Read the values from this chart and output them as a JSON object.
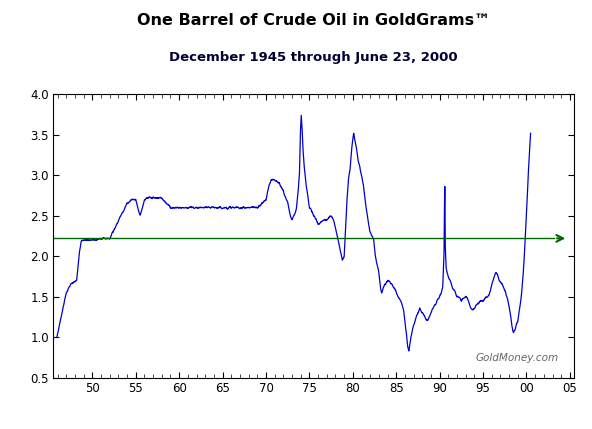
{
  "title": "One Barrel of Crude Oil in GoldGrams",
  "title_tm": "™",
  "subtitle": "December 1945 through June 23, 2000",
  "watermark": "GoldMoney.com",
  "line_color": "#0000CC",
  "arrow_color": "#006600",
  "mean_line_color": "#006600",
  "mean_value": 2.22,
  "ylim": [
    0.5,
    4.0
  ],
  "yticks": [
    0.5,
    1.0,
    1.5,
    2.0,
    2.5,
    3.0,
    3.5,
    4.0
  ],
  "xticks": [
    1950,
    1955,
    1960,
    1965,
    1970,
    1975,
    1980,
    1985,
    1990,
    1995,
    2000,
    2005
  ],
  "xtick_labels": [
    "50",
    "55",
    "60",
    "65",
    "70",
    "75",
    "80",
    "85",
    "90",
    "95",
    "00",
    "05"
  ],
  "xlim": [
    1945.5,
    2005.5
  ],
  "background_color": "#ffffff",
  "key_points": [
    [
      1945.92,
      1.0
    ],
    [
      1946.5,
      1.3
    ],
    [
      1947.0,
      1.55
    ],
    [
      1947.5,
      1.65
    ],
    [
      1948.2,
      1.7
    ],
    [
      1948.5,
      2.05
    ],
    [
      1948.7,
      2.18
    ],
    [
      1949.0,
      2.2
    ],
    [
      1949.5,
      2.2
    ],
    [
      1950.0,
      2.2
    ],
    [
      1950.5,
      2.2
    ],
    [
      1951.0,
      2.22
    ],
    [
      1952.0,
      2.22
    ],
    [
      1953.5,
      2.55
    ],
    [
      1954.0,
      2.65
    ],
    [
      1954.5,
      2.7
    ],
    [
      1955.0,
      2.7
    ],
    [
      1955.5,
      2.5
    ],
    [
      1956.0,
      2.7
    ],
    [
      1956.5,
      2.72
    ],
    [
      1957.0,
      2.72
    ],
    [
      1958.0,
      2.72
    ],
    [
      1959.0,
      2.6
    ],
    [
      1960.0,
      2.6
    ],
    [
      1961.0,
      2.6
    ],
    [
      1962.0,
      2.6
    ],
    [
      1963.0,
      2.6
    ],
    [
      1964.0,
      2.6
    ],
    [
      1965.0,
      2.6
    ],
    [
      1966.0,
      2.6
    ],
    [
      1967.0,
      2.6
    ],
    [
      1968.0,
      2.6
    ],
    [
      1969.0,
      2.6
    ],
    [
      1969.5,
      2.65
    ],
    [
      1970.0,
      2.7
    ],
    [
      1970.3,
      2.85
    ],
    [
      1970.6,
      2.95
    ],
    [
      1971.0,
      2.95
    ],
    [
      1971.5,
      2.9
    ],
    [
      1972.0,
      2.8
    ],
    [
      1972.5,
      2.65
    ],
    [
      1972.8,
      2.5
    ],
    [
      1973.0,
      2.45
    ],
    [
      1973.2,
      2.5
    ],
    [
      1973.4,
      2.55
    ],
    [
      1973.5,
      2.6
    ],
    [
      1973.7,
      2.8
    ],
    [
      1973.85,
      3.0
    ],
    [
      1973.95,
      3.5
    ],
    [
      1974.05,
      3.75
    ],
    [
      1974.15,
      3.6
    ],
    [
      1974.25,
      3.35
    ],
    [
      1974.4,
      3.1
    ],
    [
      1974.6,
      2.9
    ],
    [
      1974.8,
      2.75
    ],
    [
      1975.0,
      2.6
    ],
    [
      1975.3,
      2.55
    ],
    [
      1975.5,
      2.5
    ],
    [
      1975.8,
      2.45
    ],
    [
      1976.0,
      2.4
    ],
    [
      1976.3,
      2.42
    ],
    [
      1976.5,
      2.43
    ],
    [
      1976.8,
      2.45
    ],
    [
      1977.0,
      2.45
    ],
    [
      1977.2,
      2.48
    ],
    [
      1977.5,
      2.5
    ],
    [
      1977.8,
      2.45
    ],
    [
      1978.0,
      2.35
    ],
    [
      1978.2,
      2.25
    ],
    [
      1978.4,
      2.15
    ],
    [
      1978.6,
      2.05
    ],
    [
      1978.8,
      1.95
    ],
    [
      1979.0,
      2.0
    ],
    [
      1979.15,
      2.3
    ],
    [
      1979.3,
      2.65
    ],
    [
      1979.5,
      2.95
    ],
    [
      1979.7,
      3.1
    ],
    [
      1979.85,
      3.3
    ],
    [
      1980.0,
      3.45
    ],
    [
      1980.1,
      3.52
    ],
    [
      1980.2,
      3.45
    ],
    [
      1980.4,
      3.35
    ],
    [
      1980.6,
      3.2
    ],
    [
      1980.8,
      3.1
    ],
    [
      1981.0,
      3.0
    ],
    [
      1981.2,
      2.9
    ],
    [
      1981.4,
      2.7
    ],
    [
      1981.6,
      2.55
    ],
    [
      1981.8,
      2.4
    ],
    [
      1982.0,
      2.3
    ],
    [
      1982.2,
      2.25
    ],
    [
      1982.4,
      2.2
    ],
    [
      1982.5,
      2.1
    ],
    [
      1982.6,
      2.0
    ],
    [
      1982.8,
      1.9
    ],
    [
      1983.0,
      1.8
    ],
    [
      1983.1,
      1.7
    ],
    [
      1983.2,
      1.6
    ],
    [
      1983.3,
      1.55
    ],
    [
      1983.5,
      1.6
    ],
    [
      1983.7,
      1.65
    ],
    [
      1984.0,
      1.7
    ],
    [
      1984.2,
      1.68
    ],
    [
      1984.5,
      1.65
    ],
    [
      1984.8,
      1.6
    ],
    [
      1985.0,
      1.55
    ],
    [
      1985.2,
      1.5
    ],
    [
      1985.5,
      1.45
    ],
    [
      1985.7,
      1.4
    ],
    [
      1985.9,
      1.3
    ],
    [
      1986.0,
      1.2
    ],
    [
      1986.1,
      1.1
    ],
    [
      1986.2,
      1.0
    ],
    [
      1986.3,
      0.9
    ],
    [
      1986.4,
      0.85
    ],
    [
      1986.45,
      0.82
    ],
    [
      1986.5,
      0.85
    ],
    [
      1986.6,
      0.92
    ],
    [
      1986.7,
      1.0
    ],
    [
      1986.8,
      1.05
    ],
    [
      1987.0,
      1.15
    ],
    [
      1987.3,
      1.25
    ],
    [
      1987.5,
      1.3
    ],
    [
      1987.7,
      1.35
    ],
    [
      1988.0,
      1.3
    ],
    [
      1988.3,
      1.25
    ],
    [
      1988.5,
      1.2
    ],
    [
      1988.7,
      1.22
    ],
    [
      1989.0,
      1.3
    ],
    [
      1989.2,
      1.35
    ],
    [
      1989.5,
      1.4
    ],
    [
      1989.7,
      1.45
    ],
    [
      1990.0,
      1.5
    ],
    [
      1990.2,
      1.55
    ],
    [
      1990.35,
      1.6
    ],
    [
      1990.5,
      2.0
    ],
    [
      1990.55,
      2.6
    ],
    [
      1990.6,
      2.9
    ],
    [
      1990.65,
      2.1
    ],
    [
      1990.75,
      1.85
    ],
    [
      1990.85,
      1.8
    ],
    [
      1991.0,
      1.75
    ],
    [
      1991.2,
      1.7
    ],
    [
      1991.5,
      1.6
    ],
    [
      1991.8,
      1.55
    ],
    [
      1992.0,
      1.5
    ],
    [
      1992.3,
      1.48
    ],
    [
      1992.5,
      1.45
    ],
    [
      1992.8,
      1.48
    ],
    [
      1993.0,
      1.5
    ],
    [
      1993.2,
      1.48
    ],
    [
      1993.3,
      1.45
    ],
    [
      1993.4,
      1.42
    ],
    [
      1993.5,
      1.38
    ],
    [
      1993.7,
      1.35
    ],
    [
      1993.8,
      1.33
    ],
    [
      1994.0,
      1.35
    ],
    [
      1994.2,
      1.4
    ],
    [
      1994.5,
      1.42
    ],
    [
      1994.7,
      1.45
    ],
    [
      1995.0,
      1.45
    ],
    [
      1995.2,
      1.48
    ],
    [
      1995.5,
      1.5
    ],
    [
      1995.7,
      1.52
    ],
    [
      1996.0,
      1.65
    ],
    [
      1996.2,
      1.72
    ],
    [
      1996.4,
      1.78
    ],
    [
      1996.5,
      1.8
    ],
    [
      1996.6,
      1.78
    ],
    [
      1996.8,
      1.72
    ],
    [
      1997.0,
      1.68
    ],
    [
      1997.2,
      1.65
    ],
    [
      1997.4,
      1.6
    ],
    [
      1997.6,
      1.55
    ],
    [
      1997.8,
      1.48
    ],
    [
      1998.0,
      1.38
    ],
    [
      1998.2,
      1.25
    ],
    [
      1998.3,
      1.15
    ],
    [
      1998.4,
      1.1
    ],
    [
      1998.5,
      1.05
    ],
    [
      1998.6,
      1.08
    ],
    [
      1998.7,
      1.1
    ],
    [
      1998.8,
      1.15
    ],
    [
      1999.0,
      1.2
    ],
    [
      1999.2,
      1.35
    ],
    [
      1999.4,
      1.5
    ],
    [
      1999.5,
      1.62
    ],
    [
      1999.6,
      1.75
    ],
    [
      1999.7,
      1.9
    ],
    [
      1999.8,
      2.1
    ],
    [
      1999.9,
      2.3
    ],
    [
      2000.0,
      2.55
    ],
    [
      2000.1,
      2.75
    ],
    [
      2000.2,
      3.0
    ],
    [
      2000.3,
      3.2
    ],
    [
      2000.4,
      3.4
    ],
    [
      2000.47,
      3.52
    ]
  ]
}
